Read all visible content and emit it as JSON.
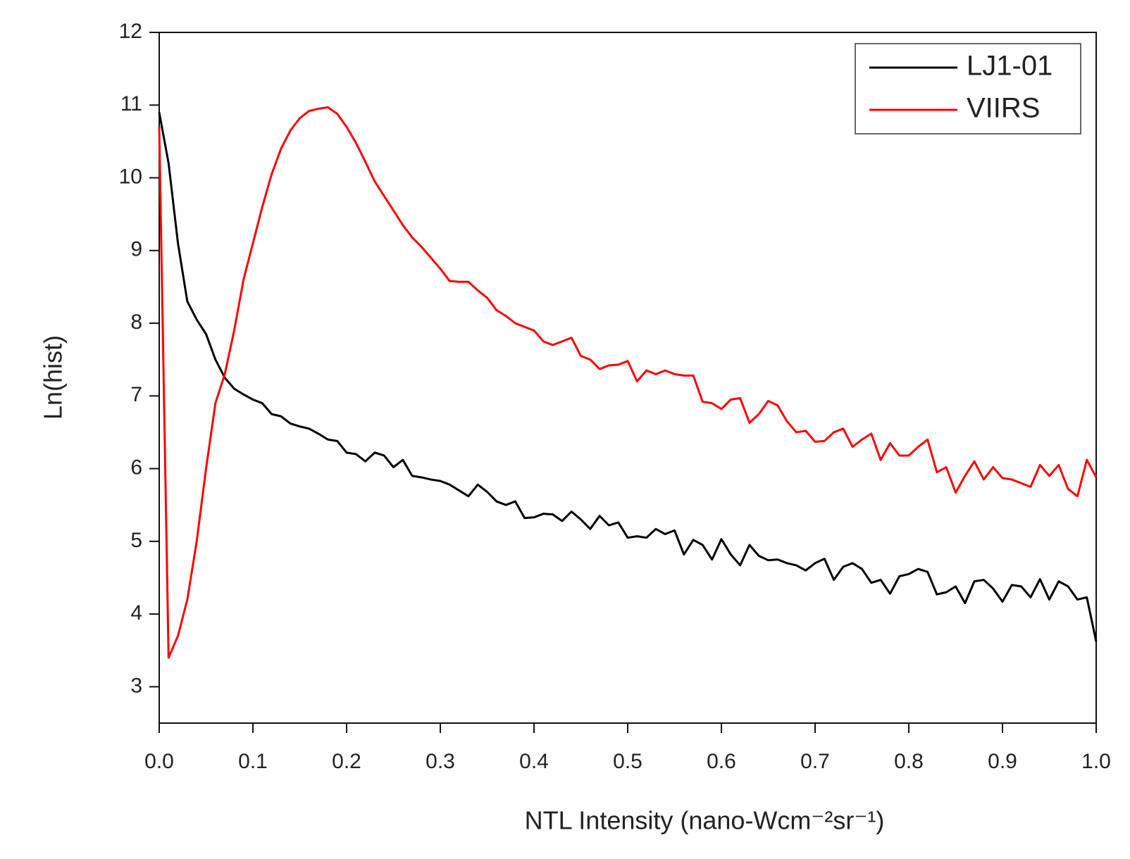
{
  "chart_data": {
    "type": "line",
    "xlabel": "NTL Intensity (nano-Wcm⁻²sr⁻¹)",
    "ylabel": "Ln(hist)",
    "x": [
      0,
      0.01,
      0.02,
      0.03,
      0.04,
      0.05,
      0.06,
      0.07,
      0.08,
      0.09,
      0.1,
      0.11,
      0.12,
      0.13,
      0.14,
      0.15,
      0.16,
      0.17,
      0.18,
      0.19,
      0.2,
      0.21,
      0.22,
      0.23,
      0.24,
      0.25,
      0.26,
      0.27,
      0.28,
      0.29,
      0.3,
      0.31,
      0.32,
      0.33,
      0.34,
      0.35,
      0.36,
      0.37,
      0.38,
      0.39,
      0.4,
      0.41,
      0.42,
      0.43,
      0.44,
      0.45,
      0.46,
      0.47,
      0.48,
      0.49,
      0.5,
      0.51,
      0.52,
      0.53,
      0.54,
      0.55,
      0.56,
      0.57,
      0.58,
      0.59,
      0.6,
      0.61,
      0.62,
      0.63,
      0.64,
      0.65,
      0.66,
      0.67,
      0.68,
      0.69,
      0.7,
      0.71,
      0.72,
      0.73,
      0.74,
      0.75,
      0.76,
      0.77,
      0.78,
      0.79,
      0.8,
      0.81,
      0.82,
      0.83,
      0.84,
      0.85,
      0.86,
      0.87,
      0.88,
      0.89,
      0.9,
      0.91,
      0.92,
      0.93,
      0.94,
      0.95,
      0.96,
      0.97,
      0.98,
      0.99,
      1
    ],
    "series": [
      {
        "name": "LJ1-01",
        "color": "#000000",
        "values": [
          10.9,
          10.2,
          9.1,
          8.3,
          8.05,
          7.85,
          7.5,
          7.25,
          7.1,
          7.02,
          6.95,
          6.9,
          6.75,
          6.72,
          6.62,
          6.58,
          6.55,
          6.48,
          6.4,
          6.38,
          6.22,
          6.2,
          6.1,
          6.22,
          6.18,
          6.02,
          6.12,
          5.9,
          5.88,
          5.85,
          5.83,
          5.78,
          5.7,
          5.62,
          5.78,
          5.68,
          5.55,
          5.5,
          5.55,
          5.32,
          5.33,
          5.38,
          5.37,
          5.28,
          5.41,
          5.3,
          5.17,
          5.35,
          5.22,
          5.26,
          5.05,
          5.07,
          5.05,
          5.17,
          5.1,
          5.15,
          4.82,
          5.02,
          4.95,
          4.75,
          5.03,
          4.82,
          4.67,
          4.95,
          4.8,
          4.74,
          4.75,
          4.7,
          4.67,
          4.6,
          4.7,
          4.76,
          4.47,
          4.65,
          4.7,
          4.62,
          4.43,
          4.47,
          4.28,
          4.52,
          4.55,
          4.62,
          4.58,
          4.27,
          4.3,
          4.38,
          4.15,
          4.45,
          4.47,
          4.35,
          4.17,
          4.4,
          4.38,
          4.23,
          4.48,
          4.2,
          4.45,
          4.38,
          4.2,
          4.23,
          3.62
        ]
      },
      {
        "name": "VIIRS",
        "color": "#ff0000",
        "values": [
          10.7,
          3.4,
          3.7,
          4.2,
          5.0,
          6.0,
          6.9,
          7.3,
          7.9,
          8.6,
          9.1,
          9.6,
          10.05,
          10.4,
          10.65,
          10.82,
          10.92,
          10.95,
          10.97,
          10.88,
          10.7,
          10.48,
          10.22,
          9.95,
          9.75,
          9.55,
          9.35,
          9.18,
          9.05,
          8.9,
          8.75,
          8.58,
          8.57,
          8.57,
          8.45,
          8.35,
          8.18,
          8.1,
          8.0,
          7.95,
          7.9,
          7.75,
          7.7,
          7.75,
          7.8,
          7.55,
          7.5,
          7.37,
          7.42,
          7.43,
          7.48,
          7.2,
          7.35,
          7.3,
          7.35,
          7.3,
          7.28,
          7.28,
          6.92,
          6.9,
          6.82,
          6.95,
          6.97,
          6.63,
          6.75,
          6.93,
          6.87,
          6.65,
          6.5,
          6.52,
          6.37,
          6.38,
          6.5,
          6.55,
          6.3,
          6.4,
          6.48,
          6.12,
          6.35,
          6.18,
          6.18,
          6.3,
          6.4,
          5.95,
          6.02,
          5.67,
          5.9,
          6.1,
          5.85,
          6.02,
          5.87,
          5.85,
          5.8,
          5.75,
          6.05,
          5.9,
          6.05,
          5.72,
          5.62,
          6.12,
          5.88
        ]
      }
    ],
    "xlim": [
      0,
      1
    ],
    "xticks": [
      {
        "value": 0,
        "label": "0.0"
      },
      0.1,
      0.2,
      0.3,
      0.4,
      0.5,
      0.6,
      0.7,
      0.8,
      0.9,
      {
        "value": 1,
        "label": "1.0"
      }
    ],
    "ylim": [
      2.5,
      12
    ],
    "yticks": [
      3,
      4,
      5,
      6,
      7,
      8,
      9,
      10,
      11,
      12
    ],
    "legend": "upper right"
  }
}
